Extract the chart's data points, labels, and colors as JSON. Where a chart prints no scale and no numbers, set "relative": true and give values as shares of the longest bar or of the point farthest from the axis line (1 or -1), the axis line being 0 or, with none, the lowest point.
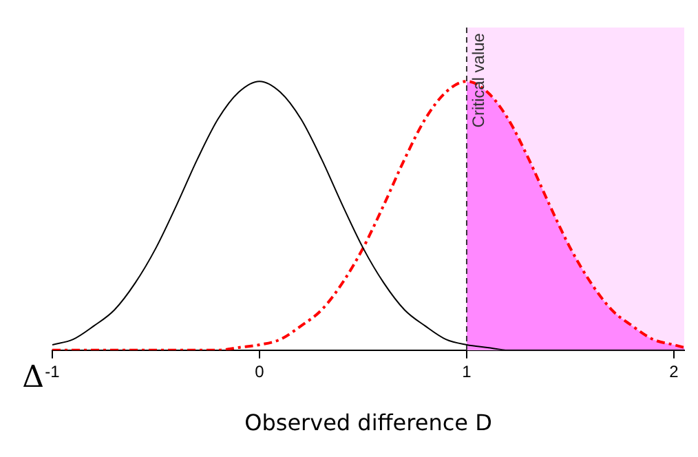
{
  "chart_data": {
    "type": "line",
    "relative": true,
    "xlabel": "Observed difference D",
    "xlim": [
      -1,
      2.05
    ],
    "xticks": [
      -1,
      0,
      1,
      2
    ],
    "grid": false,
    "legend": false,
    "marker": "none",
    "series": [
      {
        "type": "area",
        "color": "#ff88ff",
        "x": [
          1,
          1.1,
          1.2,
          1.3,
          1.4,
          1.5,
          1.6,
          1.7,
          1.8,
          1.9,
          2,
          2.05
        ],
        "values": [
          1,
          0.96,
          0.86,
          0.71,
          0.54,
          0.38,
          0.25,
          0.15,
          0.09,
          0.04,
          0.02,
          0.01
        ]
      },
      {
        "color": "#000000",
        "line_style": "solid",
        "x": [
          -1,
          -0.9,
          -0.8,
          -0.7,
          -0.6,
          -0.5,
          -0.4,
          -0.3,
          -0.2,
          -0.1,
          0,
          0.1,
          0.2,
          0.3,
          0.4,
          0.5,
          0.6,
          0.7,
          0.8,
          0.9,
          1,
          1.1,
          1.2,
          1.3,
          1.4,
          1.5,
          1.6,
          1.7,
          1.8,
          1.9,
          2,
          2.05
        ],
        "values": [
          0.02,
          0.04,
          0.09,
          0.15,
          0.25,
          0.38,
          0.54,
          0.71,
          0.86,
          0.96,
          1,
          0.96,
          0.86,
          0.71,
          0.54,
          0.38,
          0.25,
          0.15,
          0.09,
          0.04,
          0.02,
          0.01,
          0,
          0,
          0,
          0,
          0,
          0,
          0,
          0,
          0,
          0
        ]
      },
      {
        "color": "#ff0000",
        "line_style": "dashed",
        "x": [
          -1,
          -0.9,
          -0.8,
          -0.7,
          -0.6,
          -0.5,
          -0.4,
          -0.3,
          -0.2,
          -0.1,
          0,
          0.1,
          0.2,
          0.3,
          0.4,
          0.5,
          0.6,
          0.7,
          0.8,
          0.9,
          1,
          1.1,
          1.2,
          1.3,
          1.4,
          1.5,
          1.6,
          1.7,
          1.8,
          1.9,
          2,
          2.05
        ],
        "values": [
          0,
          0,
          0,
          0,
          0,
          0,
          0,
          0,
          0,
          0.01,
          0.02,
          0.04,
          0.09,
          0.15,
          0.25,
          0.38,
          0.54,
          0.71,
          0.86,
          0.96,
          1,
          0.96,
          0.86,
          0.71,
          0.54,
          0.38,
          0.25,
          0.15,
          0.09,
          0.04,
          0.02,
          0.01
        ]
      }
    ],
    "ref_lines": [
      {
        "axis": "x",
        "value": 1,
        "label": "Critical value",
        "color": "#333333",
        "line_style": "dashed"
      }
    ],
    "bands": [
      {
        "axis": "x",
        "from": 1,
        "to": 2.05,
        "color": "#ffe0ff"
      }
    ],
    "annotations": [
      "Δ"
    ]
  }
}
